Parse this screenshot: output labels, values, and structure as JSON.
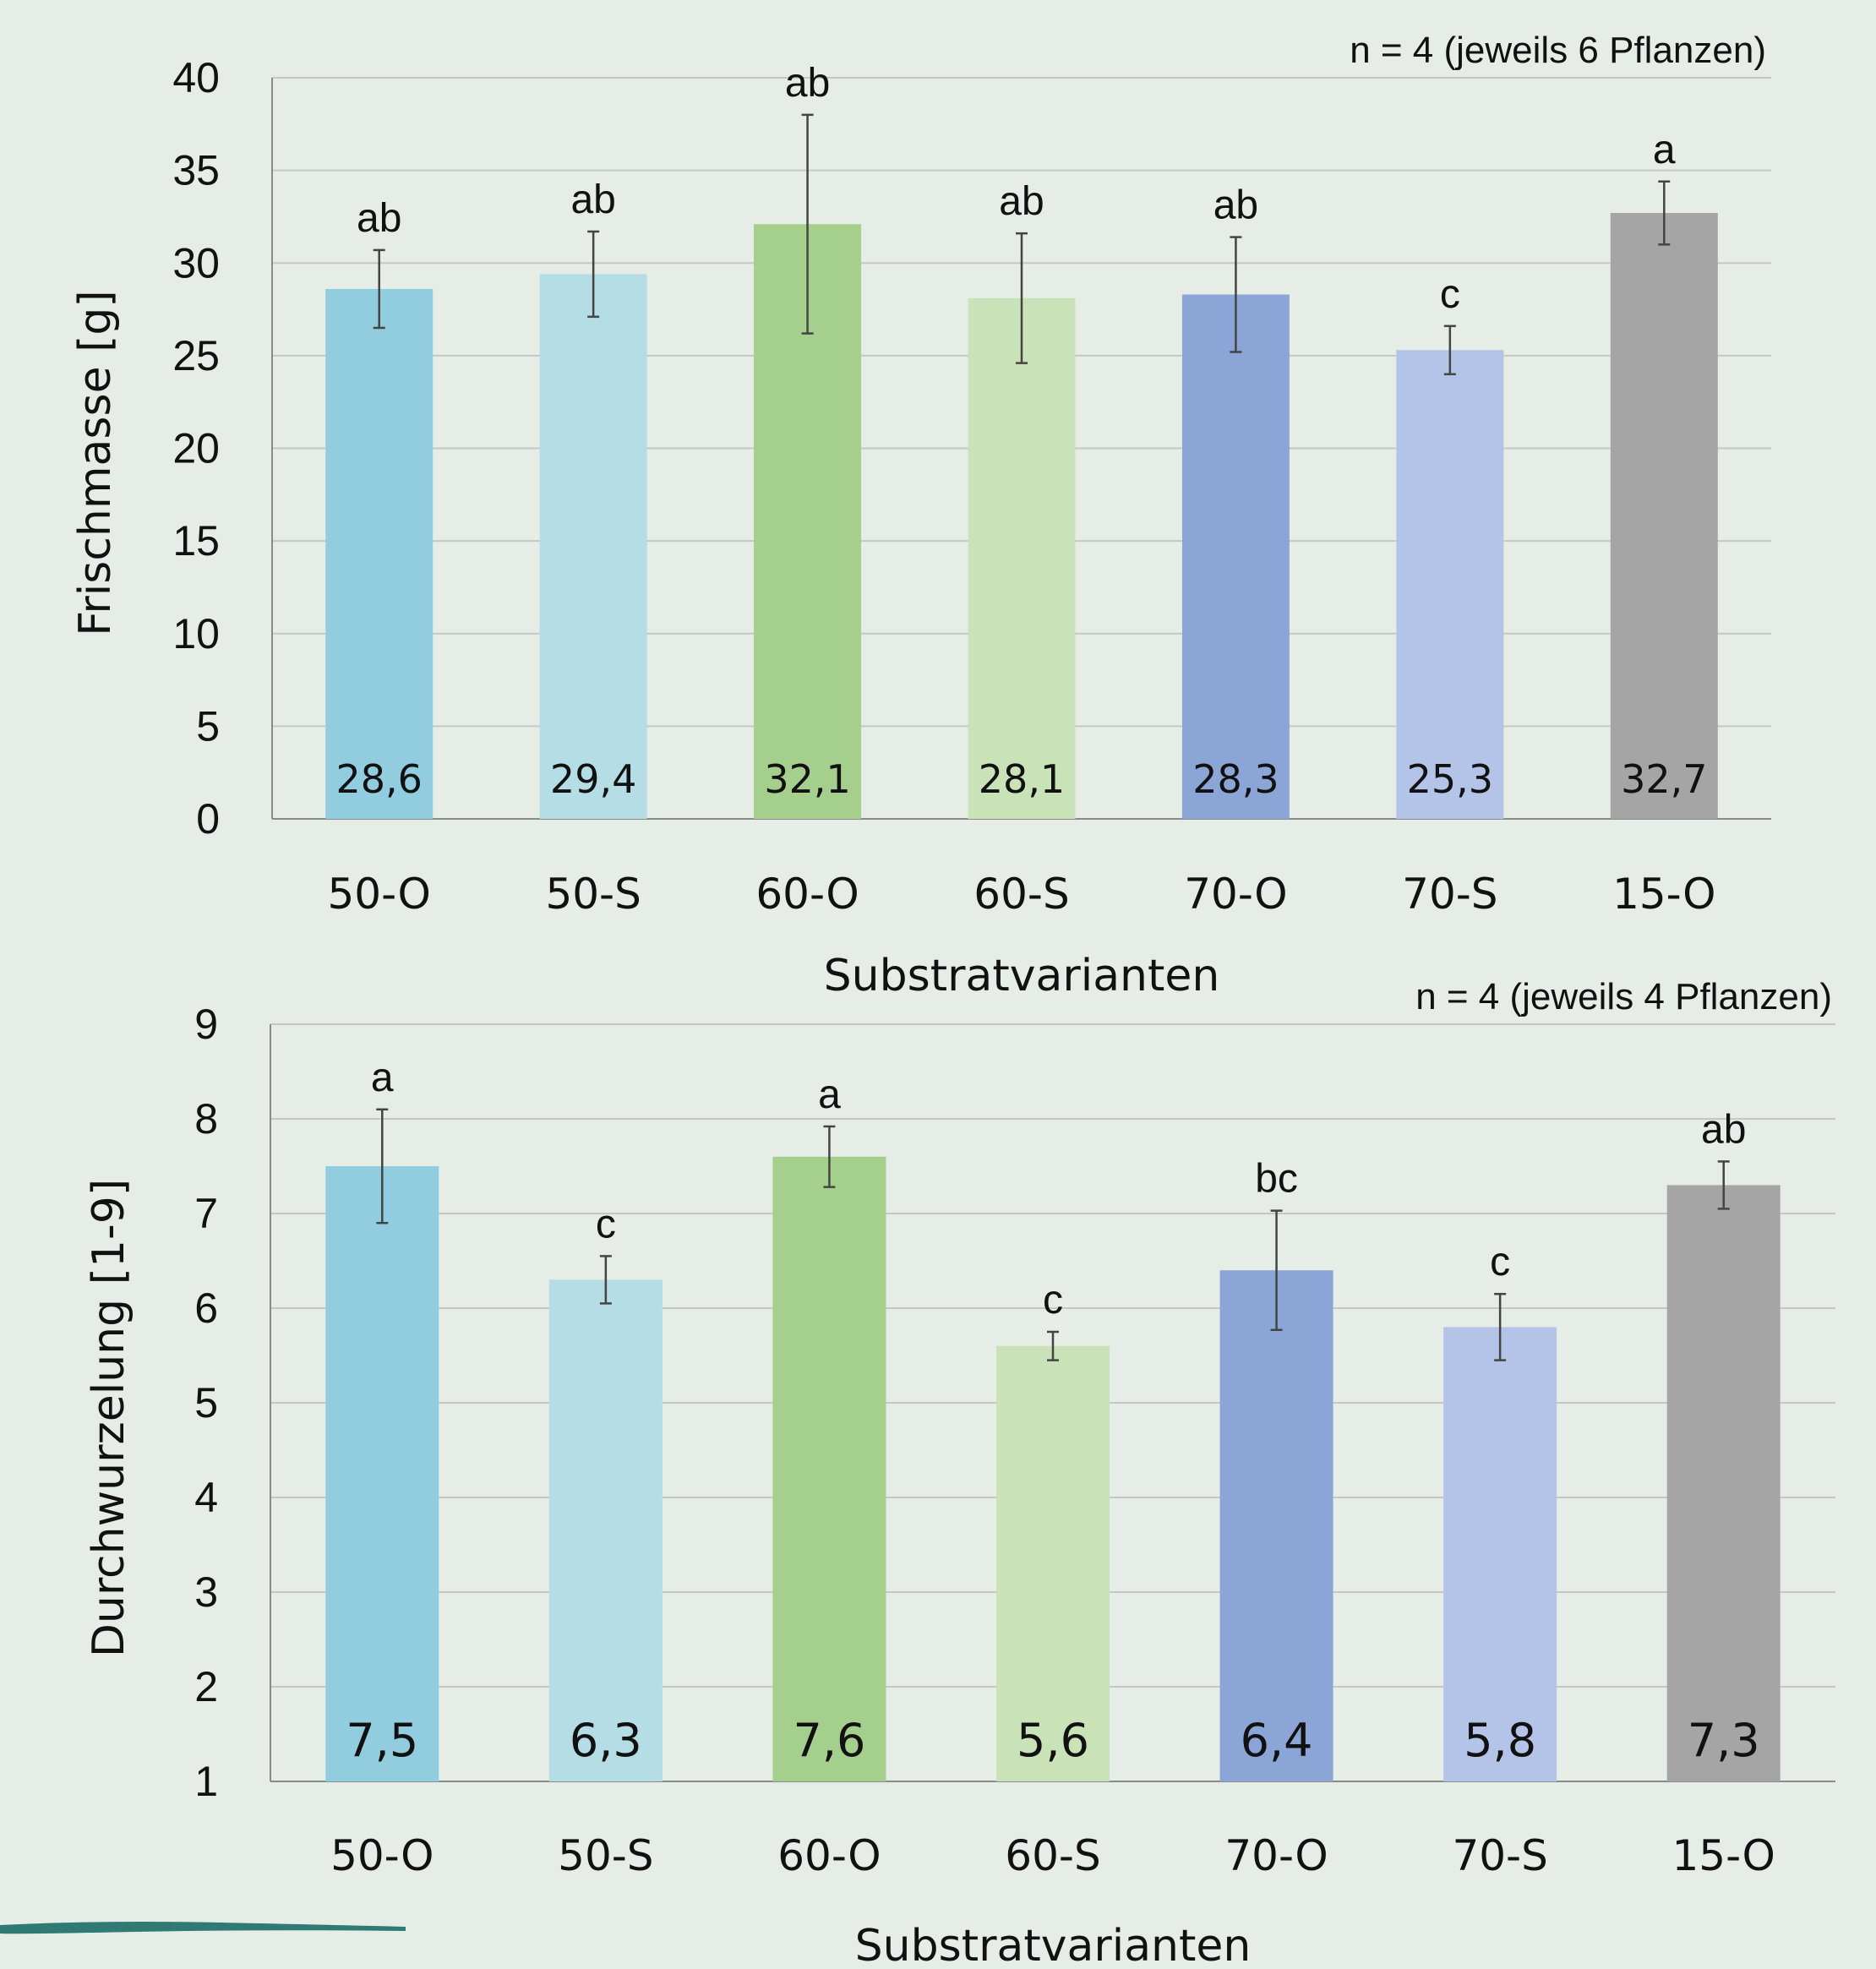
{
  "colors": {
    "background": "#e5ede6",
    "gridline": "#c4c8c4",
    "axis": "#8a8a8a",
    "errorbar": "#444444",
    "brush_stroke": "#2f7a72"
  },
  "chart_data": [
    {
      "type": "bar",
      "title": "",
      "note": "n = 4 (jeweils 6 Pflanzen)",
      "xlabel": "Substratvarianten",
      "ylabel": "Frischmasse [g]",
      "ylim": [
        0,
        40
      ],
      "yticks": [
        0,
        5,
        10,
        15,
        20,
        25,
        30,
        35,
        40
      ],
      "grid": true,
      "categories": [
        "50-O",
        "50-S",
        "60-O",
        "60-S",
        "70-O",
        "70-S",
        "15-O"
      ],
      "values": [
        28.6,
        29.4,
        32.1,
        28.1,
        28.3,
        25.3,
        32.7
      ],
      "value_labels": [
        "28,6",
        "29,4",
        "32,1",
        "28,1",
        "28,3",
        "25,3",
        "32,7"
      ],
      "errors": [
        2.1,
        2.3,
        5.9,
        3.5,
        3.1,
        1.3,
        1.7
      ],
      "significance": [
        "ab",
        "ab",
        "ab",
        "ab",
        "ab",
        "c",
        "a"
      ],
      "bar_colors": [
        "#92cddf",
        "#b5dde6",
        "#a5cf8c",
        "#c9e2b8",
        "#8ba6d6",
        "#b4c3e8",
        "#a5a5a5"
      ]
    },
    {
      "type": "bar",
      "title": "",
      "note": "n = 4 (jeweils 4 Pflanzen)",
      "xlabel": "Substratvarianten",
      "ylabel": "Durchwurzelung [1-9]",
      "ylim": [
        1,
        9
      ],
      "yticks": [
        1,
        2,
        3,
        4,
        5,
        6,
        7,
        8,
        9
      ],
      "grid": true,
      "categories": [
        "50-O",
        "50-S",
        "60-O",
        "60-S",
        "70-O",
        "70-S",
        "15-O"
      ],
      "values": [
        7.5,
        6.3,
        7.6,
        5.6,
        6.4,
        5.8,
        7.3
      ],
      "value_labels": [
        "7,5",
        "6,3",
        "7,6",
        "5,6",
        "6,4",
        "5,8",
        "7,3"
      ],
      "errors": [
        0.6,
        0.25,
        0.32,
        0.15,
        0.63,
        0.35,
        0.25
      ],
      "significance": [
        "a",
        "c",
        "a",
        "c",
        "bc",
        "c",
        "ab"
      ],
      "bar_colors": [
        "#92cddf",
        "#b5dde6",
        "#a5cf8c",
        "#c9e2b8",
        "#8ba6d6",
        "#b4c3e8",
        "#a5a5a5"
      ]
    }
  ]
}
